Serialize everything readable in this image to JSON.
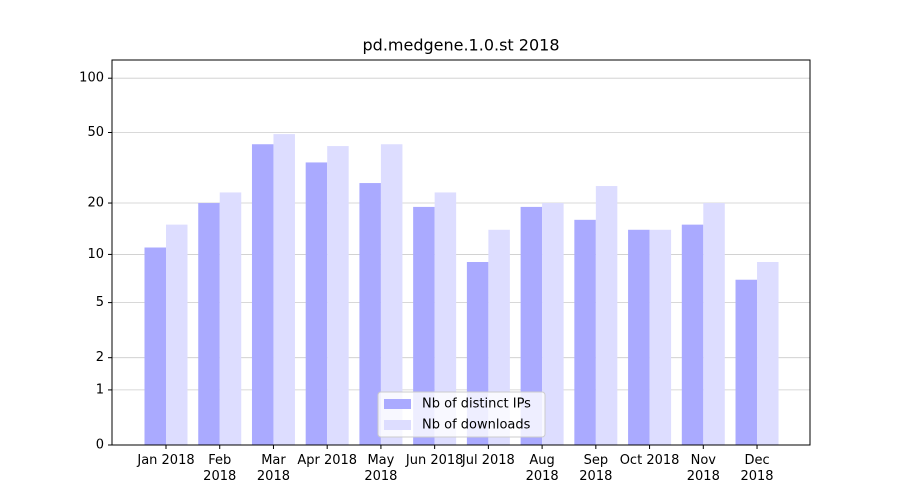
{
  "chart_data": {
    "type": "bar",
    "title": "pd.medgene.1.0.st 2018",
    "categories": [
      "Jan 2018",
      "Feb 2018",
      "Mar 2018",
      "Apr 2018",
      "May 2018",
      "Jun 2018",
      "Jul 2018",
      "Aug 2018",
      "Sep 2018",
      "Oct 2018",
      "Nov 2018",
      "Dec 2018"
    ],
    "series": [
      {
        "name": "Nb of distinct IPs",
        "color": "#aaaaff",
        "values": [
          11,
          20,
          43,
          34,
          26,
          19,
          9,
          19,
          16,
          14,
          15,
          7
        ]
      },
      {
        "name": "Nb of downloads",
        "color": "#ddddff",
        "values": [
          15,
          23,
          49,
          42,
          43,
          23,
          14,
          20,
          25,
          14,
          20,
          9
        ]
      }
    ],
    "yscale": "log1p",
    "ylim": [
      0,
      126
    ],
    "yticks": [
      0,
      1,
      2,
      5,
      10,
      20,
      50,
      100
    ],
    "grid": true,
    "legend": "lower center"
  }
}
